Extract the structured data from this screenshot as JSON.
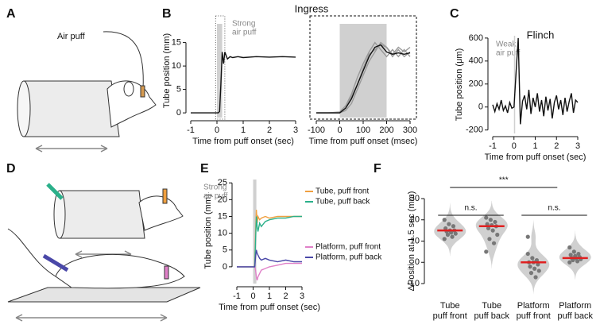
{
  "panel_labels": [
    "A",
    "B",
    "C",
    "D",
    "E",
    "F"
  ],
  "illustration_a": {
    "label": "Air puff"
  },
  "chart_data": [
    {
      "type": "line",
      "title": "Ingress",
      "annotation": [
        "Strong",
        "air puff"
      ],
      "ylabel": "Tube position (mm)",
      "xlabel": "Time from puff onset (sec)",
      "stimulus": [
        0,
        0.2
      ],
      "x": [
        -1,
        -0.5,
        0,
        0.05,
        0.1,
        0.15,
        0.2,
        0.25,
        0.3,
        0.4,
        0.5,
        0.6,
        0.8,
        1,
        1.5,
        2,
        2.5,
        3
      ],
      "series": [
        {
          "color": "#111111",
          "values": [
            0,
            0,
            0,
            0,
            0.3,
            6,
            13,
            10.5,
            13,
            11.5,
            12,
            11.8,
            12,
            11.8,
            12,
            11.9,
            12,
            11.9
          ]
        }
      ],
      "xlim": [
        -1,
        3
      ],
      "xticks": [
        -1,
        0,
        1,
        2,
        3
      ],
      "ylim": [
        -1,
        19
      ],
      "yticks": [
        0,
        5,
        10,
        15
      ]
    },
    {
      "type": "line",
      "xlabel": "Time from puff onset (msec)",
      "stimulus": [
        0,
        200
      ],
      "x": [
        -100,
        -50,
        0,
        25,
        50,
        75,
        100,
        125,
        150,
        175,
        200,
        225,
        250,
        275,
        300
      ],
      "series": [
        {
          "color": "#9a9a9a",
          "values": [
            0,
            0,
            0,
            0.5,
            2,
            5,
            8,
            11,
            13,
            15,
            14,
            12,
            13.5,
            12,
            13
          ]
        },
        {
          "color": "#9a9a9a",
          "values": [
            0,
            0,
            0.2,
            1.5,
            4,
            7.5,
            10.5,
            13,
            15,
            13.5,
            12,
            13.5,
            12,
            13.5,
            12
          ]
        },
        {
          "color": "#9a9a9a",
          "values": [
            0,
            0,
            0,
            1,
            3.5,
            6,
            9.5,
            12.5,
            13.5,
            14.5,
            14,
            12.5,
            14,
            13,
            14
          ]
        },
        {
          "color": "#111111",
          "values": [
            0,
            0,
            0,
            1,
            3,
            6,
            9,
            12,
            14,
            14.5,
            13,
            12.5,
            12.8,
            12.5,
            12.8
          ]
        }
      ],
      "xlim": [
        -100,
        300
      ],
      "xticks": [
        -100,
        0,
        100,
        200,
        300
      ],
      "ylim": [
        -1,
        19
      ]
    },
    {
      "type": "line",
      "title": "Flinch",
      "annotation": [
        "Weak",
        "air puff"
      ],
      "ylabel": "Tube position (μm)",
      "xlabel": "Time from puff onset (sec)",
      "stimulus": [
        0,
        0.03
      ],
      "x": [
        -1,
        -0.9,
        -0.8,
        -0.7,
        -0.6,
        -0.5,
        -0.4,
        -0.3,
        -0.2,
        -0.1,
        0,
        0.1,
        0.2,
        0.3,
        0.4,
        0.5,
        0.6,
        0.7,
        0.8,
        0.9,
        1,
        1.1,
        1.2,
        1.3,
        1.4,
        1.5,
        1.6,
        1.7,
        1.8,
        1.9,
        2,
        2.1,
        2.2,
        2.3,
        2.4,
        2.5,
        2.6,
        2.7,
        2.8,
        2.9,
        3
      ],
      "series": [
        {
          "color": "#111111",
          "values": [
            20,
            -40,
            30,
            -20,
            60,
            -30,
            10,
            -50,
            40,
            -10,
            0,
            300,
            600,
            -150,
            50,
            100,
            -20,
            150,
            -60,
            80,
            0,
            120,
            -40,
            60,
            -80,
            90,
            -30,
            70,
            -100,
            40,
            100,
            -20,
            60,
            -70,
            80,
            -40,
            50,
            120,
            -50,
            60,
            40
          ]
        }
      ],
      "xlim": [
        -1,
        3
      ],
      "xticks": [
        -1,
        0,
        1,
        2,
        3
      ],
      "ylim": [
        -230,
        620
      ],
      "yticks": [
        -200,
        0,
        200,
        400,
        600
      ]
    },
    {
      "type": "line",
      "annotation": [
        "Strong",
        "air puff"
      ],
      "legend": true,
      "ylabel": "Tube position (mm)",
      "xlabel": "Time from puff onset (sec)",
      "stimulus": [
        0,
        0.2
      ],
      "x": [
        -1,
        -0.5,
        0,
        0.05,
        0.1,
        0.15,
        0.2,
        0.25,
        0.3,
        0.4,
        0.5,
        0.75,
        1,
        1.5,
        2,
        2.5,
        3
      ],
      "series": [
        {
          "name": "Tube, puff front",
          "color": "#f0a040",
          "values": [
            0,
            0,
            0,
            0,
            0.5,
            10,
            17,
            13,
            15,
            14,
            14.5,
            15,
            14.5,
            15,
            15,
            15,
            15
          ]
        },
        {
          "name": "Tube, puff back",
          "color": "#2bb08a",
          "values": [
            0,
            0,
            0,
            0,
            0.3,
            8,
            15,
            12,
            10.5,
            13,
            12,
            13.5,
            14,
            14.5,
            14.5,
            15,
            15
          ]
        },
        {
          "name": "Platform, puff front",
          "color": "#e080c8",
          "values": [
            0,
            0,
            0,
            0,
            0,
            -1,
            -3,
            -4,
            -3,
            -2,
            -1,
            -0.5,
            0,
            0.5,
            1,
            1,
            1
          ]
        },
        {
          "name": "Platform, puff back",
          "color": "#4a48a8",
          "values": [
            0,
            0,
            0,
            0,
            0,
            3,
            5,
            4,
            3.5,
            2.5,
            2,
            2.5,
            2,
            1.5,
            2,
            1.5,
            1.5
          ]
        }
      ],
      "xlim": [
        -1,
        3
      ],
      "xticks": [
        -1,
        0,
        1,
        2,
        3
      ],
      "ylim": [
        -5,
        26
      ],
      "yticks": [
        0,
        5,
        10,
        15,
        20,
        25
      ]
    },
    {
      "type": "violin",
      "ylabel": "ΔPosition at 1.5 sec (mm)",
      "categories": [
        [
          "Tube",
          "puff front"
        ],
        [
          "Tube",
          "puff back"
        ],
        [
          "Platform",
          "puff front"
        ],
        [
          "Platform",
          "puff back"
        ]
      ],
      "values": [
        [
          11,
          12,
          13,
          13.5,
          14,
          14.5,
          15,
          15,
          16,
          17,
          18,
          20
        ],
        [
          5,
          9,
          11,
          13,
          15,
          16,
          17,
          17.5,
          18,
          19,
          20,
          21
        ],
        [
          12,
          -7,
          -5,
          -4,
          -3,
          -2,
          -1,
          0,
          0,
          1,
          2,
          4
        ],
        [
          0,
          0.5,
          1,
          1.5,
          2,
          2,
          2.5,
          3,
          3.5,
          4,
          5,
          7
        ]
      ],
      "medians": [
        15,
        17,
        0,
        2
      ],
      "color": "#d0d0d0",
      "point_color": "#777777",
      "median_color": "#e02020",
      "annotations": [
        "n.s.",
        "n.s.",
        "***"
      ],
      "ylim": [
        -10,
        30
      ],
      "yticks": [
        -10,
        0,
        10,
        20,
        30
      ]
    }
  ]
}
